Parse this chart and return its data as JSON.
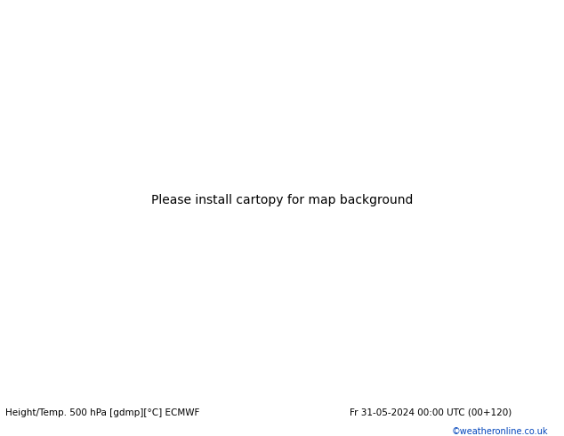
{
  "title_left": "Height/Temp. 500 hPa [gdmp][°C] ECMWF",
  "title_right": "Fr 31-05-2024 00:00 UTC (00+120)",
  "credit": "©weatheronline.co.uk",
  "bg_color": "#d3d3d3",
  "land_color_green": "#b5d48a",
  "land_color_gray": "#bbbbbb",
  "ocean_color": "#d3d3d3",
  "black": "#000000",
  "orange": "#ff8c00",
  "cyan": "#00ccdd",
  "green_c": "#66bb33",
  "red_c": "#cc0000",
  "fig_width": 6.34,
  "fig_height": 4.9,
  "dpi": 100,
  "lon_min": -45,
  "lon_max": 55,
  "lat_min": 28,
  "lat_max": 75
}
